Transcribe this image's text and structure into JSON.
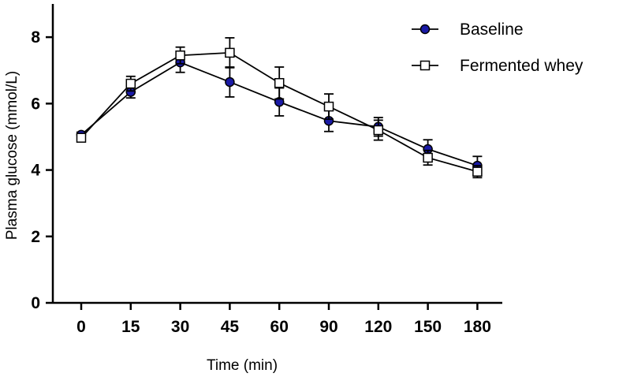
{
  "chart_data": {
    "type": "line",
    "title": "",
    "xlabel": "Time (min)",
    "ylabel": "Plasma glucose (mmol/L)",
    "categories": [
      "0",
      "15",
      "30",
      "45",
      "60",
      "90",
      "120",
      "150",
      "180"
    ],
    "ylim": [
      0,
      9
    ],
    "yticks": [
      0,
      2,
      4,
      6,
      8
    ],
    "grid": false,
    "legend_position": "top-right",
    "series": [
      {
        "name": "Baseline",
        "marker": "filled-circle",
        "color": "#1a1aa6",
        "values": [
          5.06,
          6.35,
          7.24,
          6.65,
          6.05,
          5.48,
          5.3,
          4.63,
          4.13
        ],
        "errors": [
          0.08,
          0.18,
          0.3,
          0.45,
          0.42,
          0.32,
          0.28,
          0.28,
          0.28
        ]
      },
      {
        "name": "Fermented whey",
        "marker": "open-square",
        "color": "#ffffff",
        "values": [
          4.97,
          6.6,
          7.45,
          7.53,
          6.62,
          5.91,
          5.2,
          4.37,
          3.95
        ],
        "errors": [
          0.08,
          0.22,
          0.25,
          0.45,
          0.48,
          0.38,
          0.3,
          0.22,
          0.18
        ]
      }
    ]
  }
}
